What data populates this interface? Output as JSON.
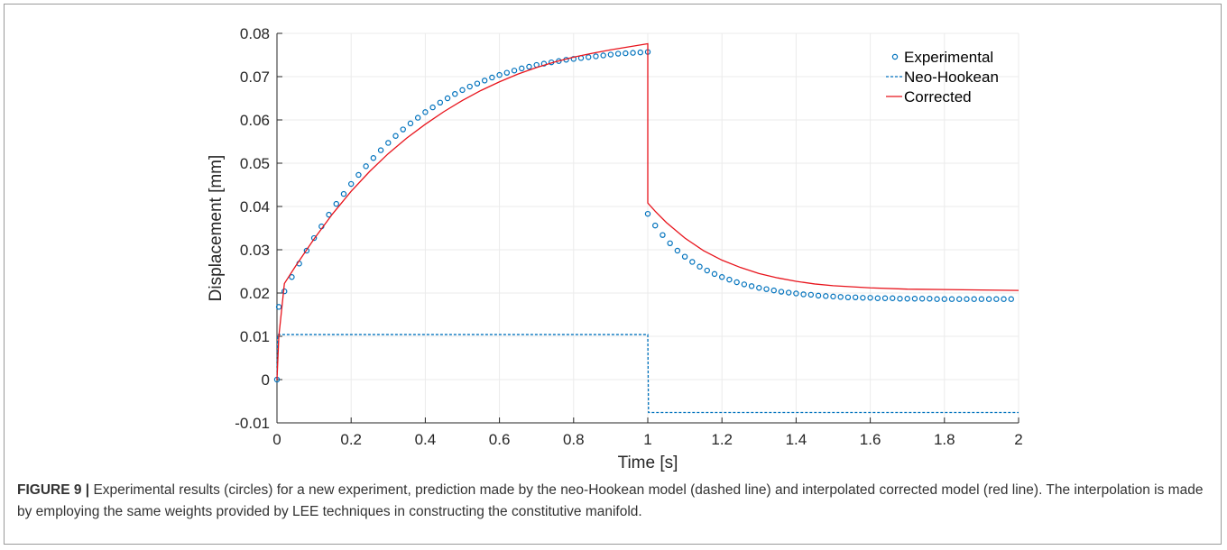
{
  "chart_data": {
    "type": "line",
    "title": "",
    "xlabel": "Time [s]",
    "ylabel": "Displacement [mm]",
    "xlim": [
      0,
      2
    ],
    "ylim": [
      -0.01,
      0.08
    ],
    "xticks": [
      0,
      0.2,
      0.4,
      0.6,
      0.8,
      1,
      1.2,
      1.4,
      1.6,
      1.8,
      2
    ],
    "xtick_labels": [
      "0",
      "0.2",
      "0.4",
      "0.6",
      "0.8",
      "1",
      "1.2",
      "1.4",
      "1.6",
      "1.8",
      "2"
    ],
    "yticks": [
      -0.01,
      0,
      0.01,
      0.02,
      0.03,
      0.04,
      0.05,
      0.06,
      0.07,
      0.08
    ],
    "ytick_labels": [
      "-0.01",
      "0",
      "0.01",
      "0.02",
      "0.03",
      "0.04",
      "0.05",
      "0.06",
      "0.07",
      "0.08"
    ],
    "grid": true,
    "legend_position": "top-right",
    "series": [
      {
        "name": "Experimental",
        "style": "circles",
        "color": "#0072BD",
        "x": [
          0,
          0.005,
          0.02,
          0.04,
          0.06,
          0.08,
          0.1,
          0.12,
          0.14,
          0.16,
          0.18,
          0.2,
          0.22,
          0.24,
          0.26,
          0.28,
          0.3,
          0.32,
          0.34,
          0.36,
          0.38,
          0.4,
          0.42,
          0.44,
          0.46,
          0.48,
          0.5,
          0.52,
          0.54,
          0.56,
          0.58,
          0.6,
          0.62,
          0.64,
          0.66,
          0.68,
          0.7,
          0.72,
          0.74,
          0.76,
          0.78,
          0.8,
          0.82,
          0.84,
          0.86,
          0.88,
          0.9,
          0.92,
          0.94,
          0.96,
          0.98,
          1.0,
          1.0,
          1.02,
          1.04,
          1.06,
          1.08,
          1.1,
          1.12,
          1.14,
          1.16,
          1.18,
          1.2,
          1.22,
          1.24,
          1.26,
          1.28,
          1.3,
          1.32,
          1.34,
          1.36,
          1.38,
          1.4,
          1.42,
          1.44,
          1.46,
          1.48,
          1.5,
          1.52,
          1.54,
          1.56,
          1.58,
          1.6,
          1.62,
          1.64,
          1.66,
          1.68,
          1.7,
          1.72,
          1.74,
          1.76,
          1.78,
          1.8,
          1.82,
          1.84,
          1.86,
          1.88,
          1.9,
          1.92,
          1.94,
          1.96,
          1.98
        ],
        "y": [
          0,
          0.0168,
          0.0204,
          0.0237,
          0.0268,
          0.0298,
          0.0327,
          0.0354,
          0.0381,
          0.0406,
          0.0429,
          0.0452,
          0.0473,
          0.0493,
          0.0512,
          0.053,
          0.0547,
          0.0563,
          0.0578,
          0.0592,
          0.0605,
          0.0618,
          0.0629,
          0.064,
          0.065,
          0.066,
          0.0669,
          0.0677,
          0.0684,
          0.0691,
          0.0698,
          0.0704,
          0.0709,
          0.0714,
          0.0719,
          0.0723,
          0.0727,
          0.073,
          0.0733,
          0.0736,
          0.0739,
          0.0741,
          0.0743,
          0.0745,
          0.0747,
          0.0749,
          0.0751,
          0.0753,
          0.0754,
          0.0755,
          0.0756,
          0.0757,
          0.0383,
          0.0356,
          0.0334,
          0.0315,
          0.0298,
          0.0284,
          0.0272,
          0.0261,
          0.0252,
          0.0244,
          0.0237,
          0.0231,
          0.0225,
          0.022,
          0.0216,
          0.0212,
          0.0209,
          0.0206,
          0.0203,
          0.0201,
          0.0199,
          0.0197,
          0.0196,
          0.0194,
          0.0193,
          0.0192,
          0.0191,
          0.019,
          0.019,
          0.0189,
          0.0189,
          0.0188,
          0.0188,
          0.0188,
          0.0187,
          0.0187,
          0.0187,
          0.0187,
          0.0187,
          0.0186,
          0.0186,
          0.0186,
          0.0186,
          0.0186,
          0.0186,
          0.0186,
          0.0186,
          0.0186,
          0.0186,
          0.0186
        ]
      },
      {
        "name": "Neo-Hookean",
        "style": "dashed",
        "color": "#0072BD",
        "x": [
          0,
          0.002,
          1.0,
          1.002,
          2.0
        ],
        "y": [
          0,
          0.0104,
          0.0104,
          -0.0076,
          -0.0076
        ]
      },
      {
        "name": "Corrected",
        "style": "solid",
        "color": "#E8141C",
        "x": [
          0,
          0.005,
          0.02,
          0.05,
          0.1,
          0.15,
          0.2,
          0.25,
          0.3,
          0.35,
          0.4,
          0.45,
          0.5,
          0.55,
          0.6,
          0.65,
          0.7,
          0.75,
          0.8,
          0.85,
          0.9,
          0.95,
          1.0,
          1.0,
          1.02,
          1.05,
          1.1,
          1.15,
          1.2,
          1.25,
          1.3,
          1.35,
          1.4,
          1.45,
          1.5,
          1.6,
          1.7,
          1.8,
          1.9,
          2.0
        ],
        "y": [
          0,
          0.01,
          0.0222,
          0.0262,
          0.0325,
          0.0383,
          0.0435,
          0.0481,
          0.0522,
          0.0558,
          0.059,
          0.0619,
          0.0645,
          0.0668,
          0.0688,
          0.0706,
          0.0721,
          0.0734,
          0.0745,
          0.0754,
          0.0762,
          0.0769,
          0.0776,
          0.0408,
          0.0389,
          0.0363,
          0.0327,
          0.0298,
          0.0276,
          0.0259,
          0.0245,
          0.0235,
          0.0227,
          0.0221,
          0.0217,
          0.0212,
          0.0209,
          0.0208,
          0.0207,
          0.0206
        ]
      }
    ]
  },
  "caption": {
    "label": "FIGURE 9 |",
    "text": " Experimental results (circles) for a new experiment, prediction made by the neo-Hookean model (dashed line) and interpolated corrected model (red line). The interpolation is made by employing the same weights provided by LEE techniques in constructing the constitutive manifold."
  }
}
